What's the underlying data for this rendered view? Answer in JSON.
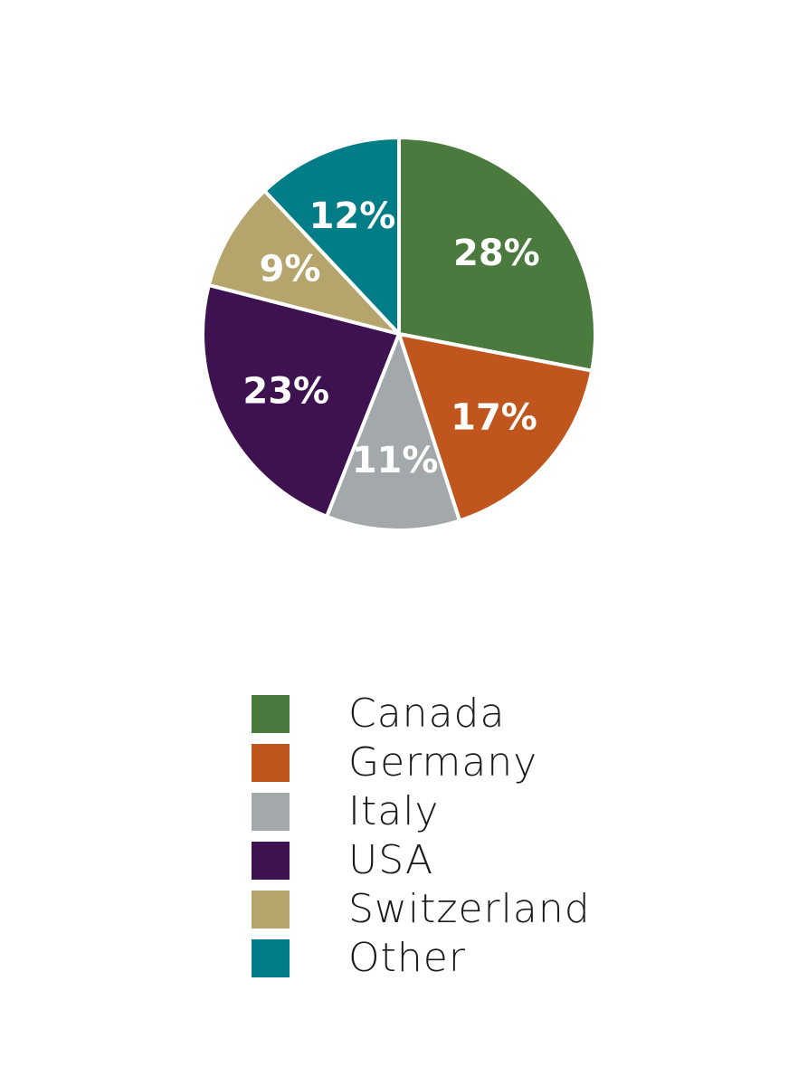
{
  "chart_data": {
    "type": "pie",
    "title": "",
    "slices": [
      {
        "label": "Canada",
        "value": 28,
        "display": "28%",
        "color": "#4a7a3d"
      },
      {
        "label": "Germany",
        "value": 17,
        "display": "17%",
        "color": "#c0561d"
      },
      {
        "label": "Italy",
        "value": 11,
        "display": "11%",
        "color": "#a3a9ab"
      },
      {
        "label": "USA",
        "value": 23,
        "display": "23%",
        "color": "#3e1250"
      },
      {
        "label": "Switzerland",
        "value": 9,
        "display": "9%",
        "color": "#b5a46b"
      },
      {
        "label": "Other",
        "value": 12,
        "display": "12%",
        "color": "#007d87"
      }
    ],
    "start_angle_deg": 0,
    "direction": "clockwise",
    "legend_placement": "bottom"
  }
}
